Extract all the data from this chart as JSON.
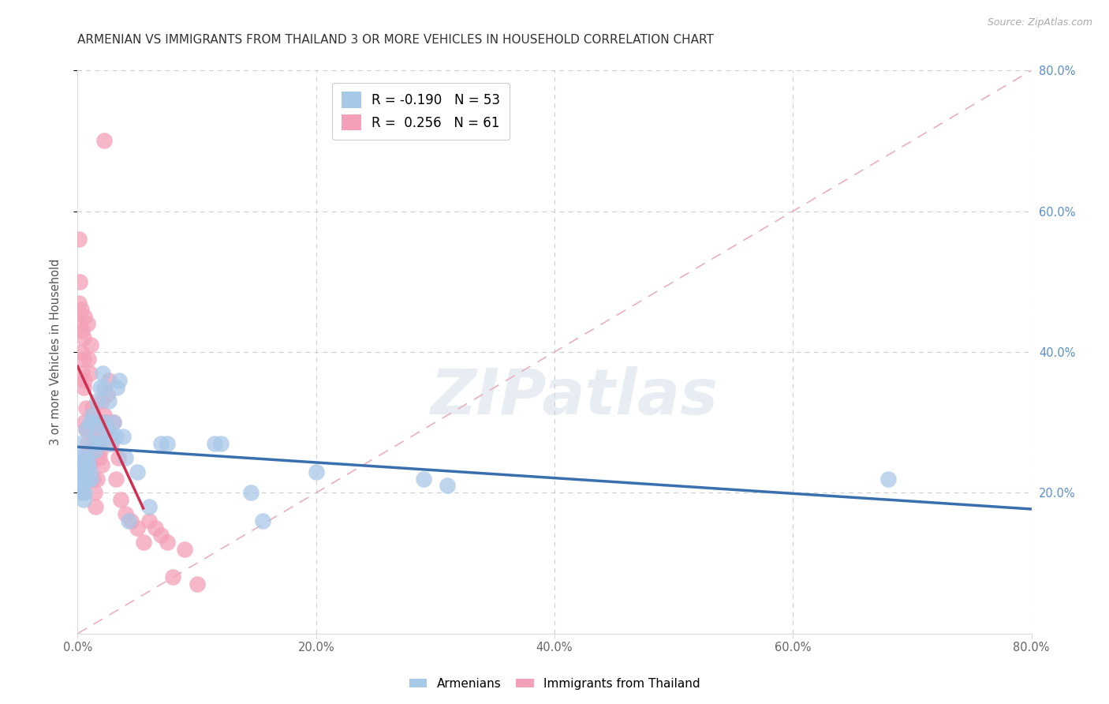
{
  "title": "ARMENIAN VS IMMIGRANTS FROM THAILAND 3 OR MORE VEHICLES IN HOUSEHOLD CORRELATION CHART",
  "source": "Source: ZipAtlas.com",
  "ylabel": "3 or more Vehicles in Household",
  "legend_label_blue": "Armenians",
  "legend_label_pink": "Immigrants from Thailand",
  "R_blue": -0.19,
  "N_blue": 53,
  "R_pink": 0.256,
  "N_pink": 61,
  "color_blue": "#a8c8e8",
  "color_pink": "#f4a0b8",
  "line_color_blue": "#3a6fad",
  "line_color_pink": "#d03050",
  "ref_line_color": "#e8b0bc",
  "background": "#ffffff",
  "xlim": [
    0.0,
    0.8
  ],
  "ylim": [
    0.0,
    0.8
  ],
  "blue_x": [
    0.001,
    0.002,
    0.002,
    0.003,
    0.003,
    0.004,
    0.004,
    0.005,
    0.005,
    0.006,
    0.006,
    0.007,
    0.007,
    0.008,
    0.008,
    0.009,
    0.01,
    0.01,
    0.011,
    0.012,
    0.013,
    0.014,
    0.015,
    0.016,
    0.017,
    0.018,
    0.019,
    0.021,
    0.022,
    0.023,
    0.025,
    0.026,
    0.027,
    0.028,
    0.03,
    0.032,
    0.033,
    0.035,
    0.038,
    0.04,
    0.043,
    0.05,
    0.06,
    0.07,
    0.075,
    0.115,
    0.12,
    0.145,
    0.155,
    0.2,
    0.29,
    0.31,
    0.68
  ],
  "blue_y": [
    0.25,
    0.22,
    0.27,
    0.24,
    0.21,
    0.23,
    0.2,
    0.22,
    0.19,
    0.25,
    0.2,
    0.23,
    0.29,
    0.25,
    0.22,
    0.24,
    0.23,
    0.3,
    0.22,
    0.31,
    0.27,
    0.26,
    0.28,
    0.33,
    0.3,
    0.27,
    0.35,
    0.37,
    0.35,
    0.3,
    0.29,
    0.33,
    0.27,
    0.28,
    0.3,
    0.28,
    0.35,
    0.36,
    0.28,
    0.25,
    0.16,
    0.23,
    0.18,
    0.27,
    0.27,
    0.27,
    0.27,
    0.2,
    0.16,
    0.23,
    0.22,
    0.21,
    0.22
  ],
  "pink_x": [
    0.001,
    0.001,
    0.002,
    0.002,
    0.003,
    0.003,
    0.004,
    0.004,
    0.005,
    0.005,
    0.005,
    0.006,
    0.006,
    0.006,
    0.007,
    0.007,
    0.008,
    0.008,
    0.009,
    0.009,
    0.01,
    0.01,
    0.011,
    0.011,
    0.012,
    0.012,
    0.013,
    0.013,
    0.014,
    0.014,
    0.015,
    0.015,
    0.016,
    0.016,
    0.017,
    0.018,
    0.019,
    0.02,
    0.02,
    0.022,
    0.023,
    0.024,
    0.025,
    0.026,
    0.028,
    0.03,
    0.032,
    0.034,
    0.036,
    0.04,
    0.045,
    0.05,
    0.055,
    0.06,
    0.065,
    0.07,
    0.075,
    0.08,
    0.09,
    0.1,
    0.022
  ],
  "pink_y": [
    0.47,
    0.56,
    0.5,
    0.44,
    0.46,
    0.4,
    0.43,
    0.37,
    0.42,
    0.39,
    0.35,
    0.36,
    0.3,
    0.45,
    0.32,
    0.29,
    0.27,
    0.44,
    0.26,
    0.39,
    0.24,
    0.37,
    0.22,
    0.41,
    0.32,
    0.26,
    0.3,
    0.22,
    0.29,
    0.2,
    0.27,
    0.18,
    0.28,
    0.22,
    0.27,
    0.25,
    0.26,
    0.33,
    0.24,
    0.31,
    0.29,
    0.3,
    0.34,
    0.36,
    0.27,
    0.3,
    0.22,
    0.25,
    0.19,
    0.17,
    0.16,
    0.15,
    0.13,
    0.16,
    0.15,
    0.14,
    0.13,
    0.08,
    0.12,
    0.07,
    0.7
  ],
  "yticks": [
    0.2,
    0.4,
    0.6,
    0.8
  ],
  "xticks": [
    0.0,
    0.2,
    0.4,
    0.6,
    0.8
  ]
}
